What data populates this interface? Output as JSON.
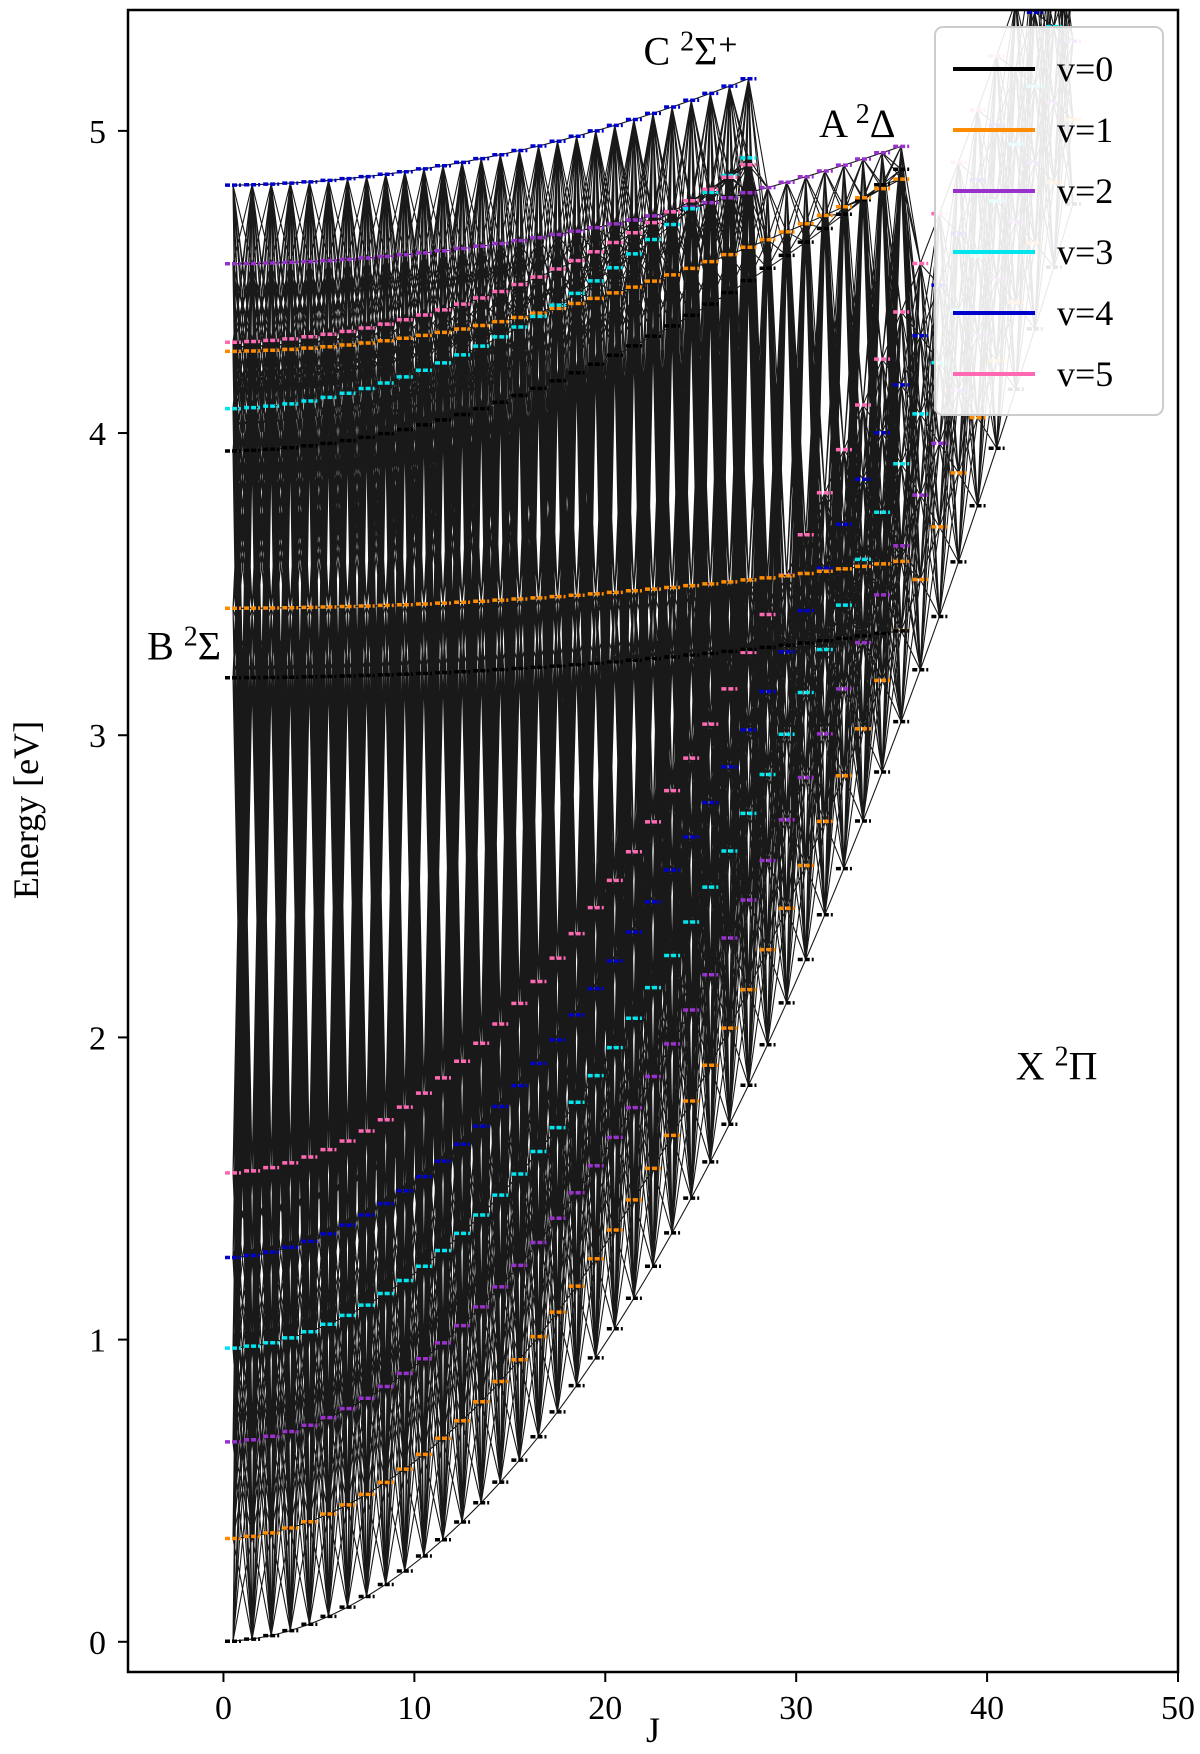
{
  "chart_data": {
    "type": "line",
    "xlabel": "J",
    "ylabel": "Energy [eV]",
    "xlim": [
      -5,
      50
    ],
    "ylim": [
      -0.1,
      5.4
    ],
    "x_ticks": [
      0,
      10,
      20,
      30,
      40,
      50
    ],
    "y_ticks": [
      0,
      1,
      2,
      3,
      4,
      5
    ],
    "x_tick_labels": [
      "0",
      "10",
      "20",
      "30",
      "40",
      "50"
    ],
    "y_tick_labels": [
      "0",
      "1",
      "2",
      "3",
      "4",
      "5"
    ],
    "grid": false,
    "legend_position": "top-right",
    "legend": [
      {
        "label": "v=0",
        "color": "#000000"
      },
      {
        "label": "v=1",
        "color": "#ff8c00"
      },
      {
        "label": "v=2",
        "color": "#9932cc"
      },
      {
        "label": "v=3",
        "color": "#00e5ee"
      },
      {
        "label": "v=4",
        "color": "#0000cd"
      },
      {
        "label": "v=5",
        "color": "#ff69b4"
      }
    ],
    "states": [
      {
        "label_main": "X",
        "label_sup": "2",
        "label_sym": "Π",
        "label_pos": [
          41.5,
          1.86
        ],
        "J_max": 44.5,
        "levels": [
          {
            "v": 0,
            "T0": 0.0,
            "B": 0.00235
          },
          {
            "v": 1,
            "T0": 0.34,
            "B": 0.00232
          },
          {
            "v": 2,
            "T0": 0.66,
            "B": 0.00229
          },
          {
            "v": 3,
            "T0": 0.97,
            "B": 0.00226
          },
          {
            "v": 4,
            "T0": 1.27,
            "B": 0.00223
          },
          {
            "v": 5,
            "T0": 1.55,
            "B": 0.0022
          }
        ]
      },
      {
        "label_main": "B",
        "label_sup": "2",
        "label_sym": "Σ",
        "label_pos": [
          -4.0,
          3.25
        ],
        "J_max": 36.0,
        "levels": [
          {
            "v": 0,
            "T0": 3.19,
            "B": 0.00012
          },
          {
            "v": 1,
            "T0": 3.42,
            "B": 0.00012
          }
        ]
      },
      {
        "label_main": "A",
        "label_sup": "2",
        "label_sym": "Δ",
        "label_pos": [
          31.2,
          4.98
        ],
        "J_max": 35.5,
        "levels": [
          {
            "v": 0,
            "T0": 3.94,
            "B": 0.00072
          },
          {
            "v": 1,
            "T0": 4.27,
            "B": 0.00044
          },
          {
            "v": 2,
            "T0": 4.56,
            "B": 0.0003
          }
        ]
      },
      {
        "label_main": "C",
        "label_sup": "2",
        "label_sym": "Σ⁺",
        "label_pos": [
          22.0,
          5.22
        ],
        "J_max": 27.5,
        "levels": [
          {
            "v": 3,
            "T0": 4.08,
            "B": 0.00106
          },
          {
            "v": 4,
            "T0": 4.82,
            "B": 0.00045
          },
          {
            "v": 5,
            "T0": 4.3,
            "B": 0.00075
          }
        ]
      }
    ]
  }
}
